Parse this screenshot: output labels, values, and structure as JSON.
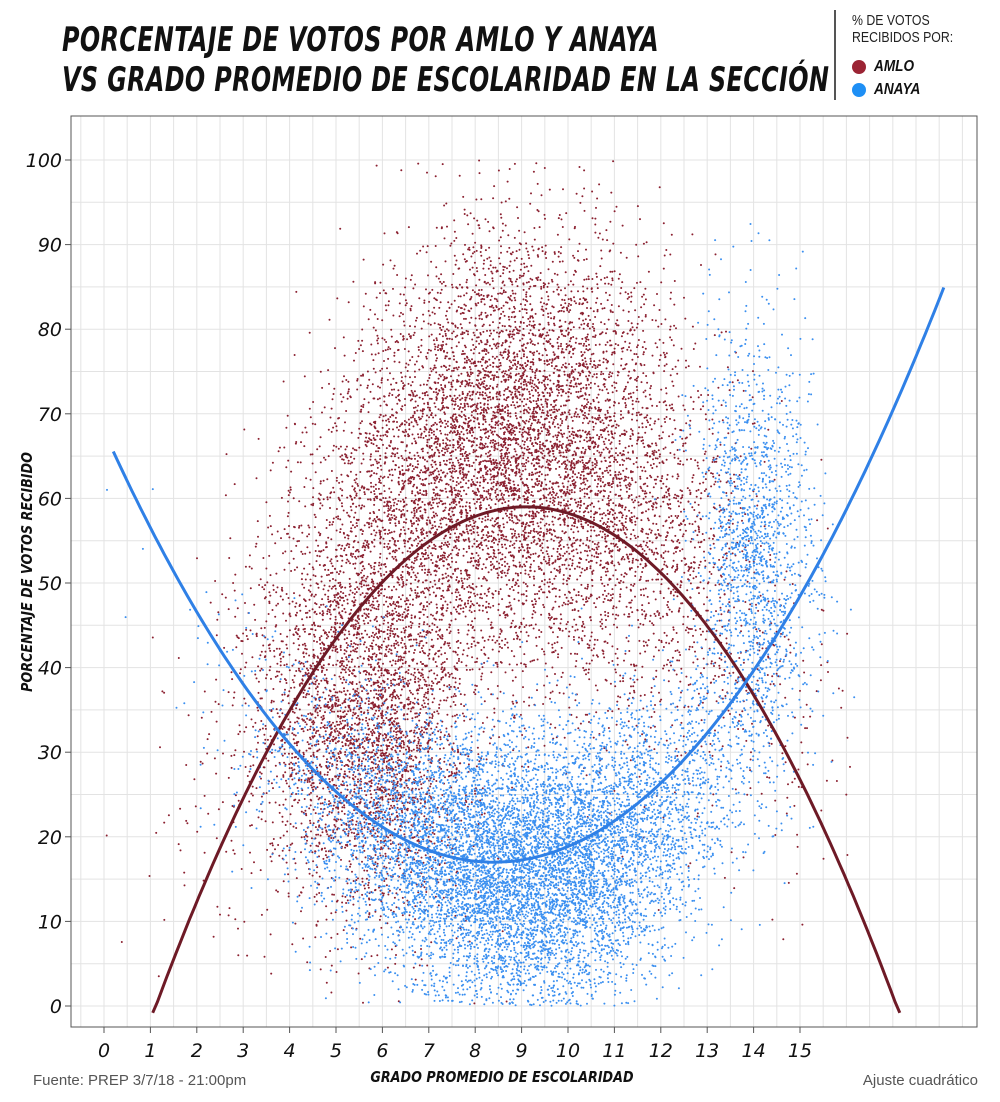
{
  "chart_data": {
    "type": "scatter",
    "title_lines": [
      "PORCENTAJE DE VOTOS POR AMLO Y ANAYA",
      "VS GRADO PROMEDIO DE ESCOLARIDAD EN LA SECCIÓN"
    ],
    "xlabel": "GRADO PROMEDIO DE ESCOLARIDAD",
    "ylabel": "PORCENTAJE DE VOTOS RECIBIDO",
    "xlim": [
      -0.7,
      18.9
    ],
    "ylim": [
      -2.5,
      105
    ],
    "x_ticks": [
      "0",
      "1",
      "2",
      "3",
      "4",
      "5",
      "6",
      "7",
      "8",
      "9",
      "10",
      "11",
      "12",
      "13",
      "14",
      "15"
    ],
    "y_ticks": [
      "0",
      "10",
      "20",
      "30",
      "40",
      "50",
      "60",
      "70",
      "80",
      "90",
      "100"
    ],
    "grid": true,
    "legend": {
      "title": [
        "% DE VOTOS",
        "RECIBIDOS POR:"
      ],
      "position": "top-right",
      "entries": [
        "AMLO",
        "ANAYA"
      ]
    },
    "series": [
      {
        "name": "AMLO",
        "color": "#8b2030",
        "line_color": "#6e1a26",
        "fit": {
          "type": "quadratic",
          "vertex_x": 9.1,
          "vertex_y": 59,
          "a": -0.926,
          "x_range": [
            1.05,
            17.2
          ]
        },
        "cloud": {
          "x_mean": 8.8,
          "x_sd": 2.4,
          "y_peak": 66,
          "y_sd": 13
        }
      },
      {
        "name": "ANAYA",
        "color": "#3a8ff0",
        "line_color": "#2f80e6",
        "fit": {
          "type": "quadratic",
          "vertex_x": 8.4,
          "vertex_y": 17,
          "a": 0.722,
          "x_range": [
            0.2,
            18.1
          ]
        },
        "cloud": {
          "x_mean": 9.0,
          "x_sd": 2.3,
          "y_base": 16,
          "y_sd": 8
        }
      }
    ],
    "caption_left": "Fuente: PREP 3/7/18 - 21:00pm",
    "caption_right": "Ajuste cuadrático"
  }
}
